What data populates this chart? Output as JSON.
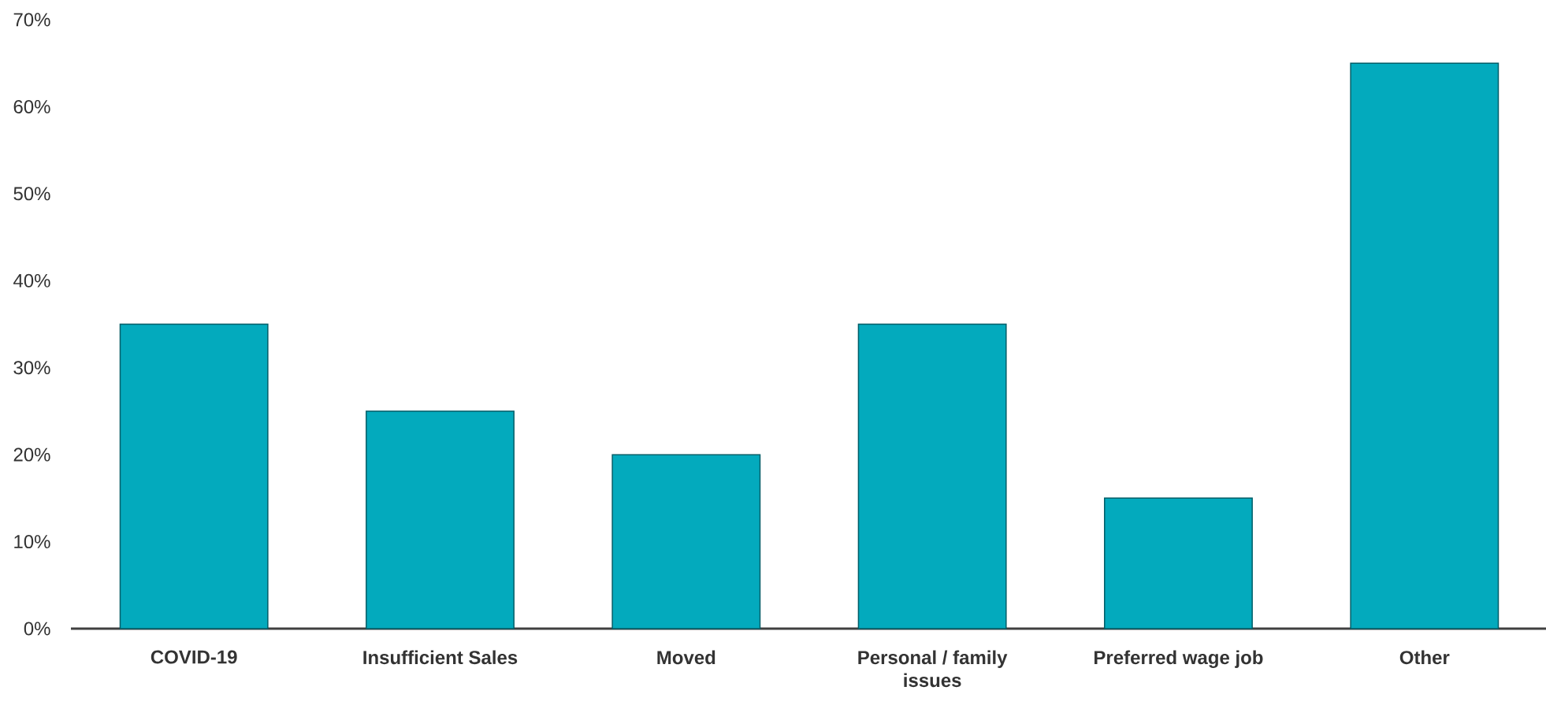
{
  "chart_data": {
    "type": "bar",
    "categories": [
      "COVID-19",
      "Insufficient Sales",
      "Moved",
      "Personal / family issues",
      "Preferred wage job",
      "Other"
    ],
    "values": [
      35,
      25,
      20,
      35,
      15,
      65
    ],
    "color": "#03aabd",
    "ylim": [
      0,
      70
    ],
    "yticks": [
      {
        "value": 0,
        "label": "0%"
      },
      {
        "value": 10,
        "label": "10%"
      },
      {
        "value": 20,
        "label": "20%"
      },
      {
        "value": 30,
        "label": "30%"
      },
      {
        "value": 40,
        "label": "40%"
      },
      {
        "value": 50,
        "label": "50%"
      },
      {
        "value": 60,
        "label": "60%"
      },
      {
        "value": 70,
        "label": "70%"
      }
    ]
  }
}
